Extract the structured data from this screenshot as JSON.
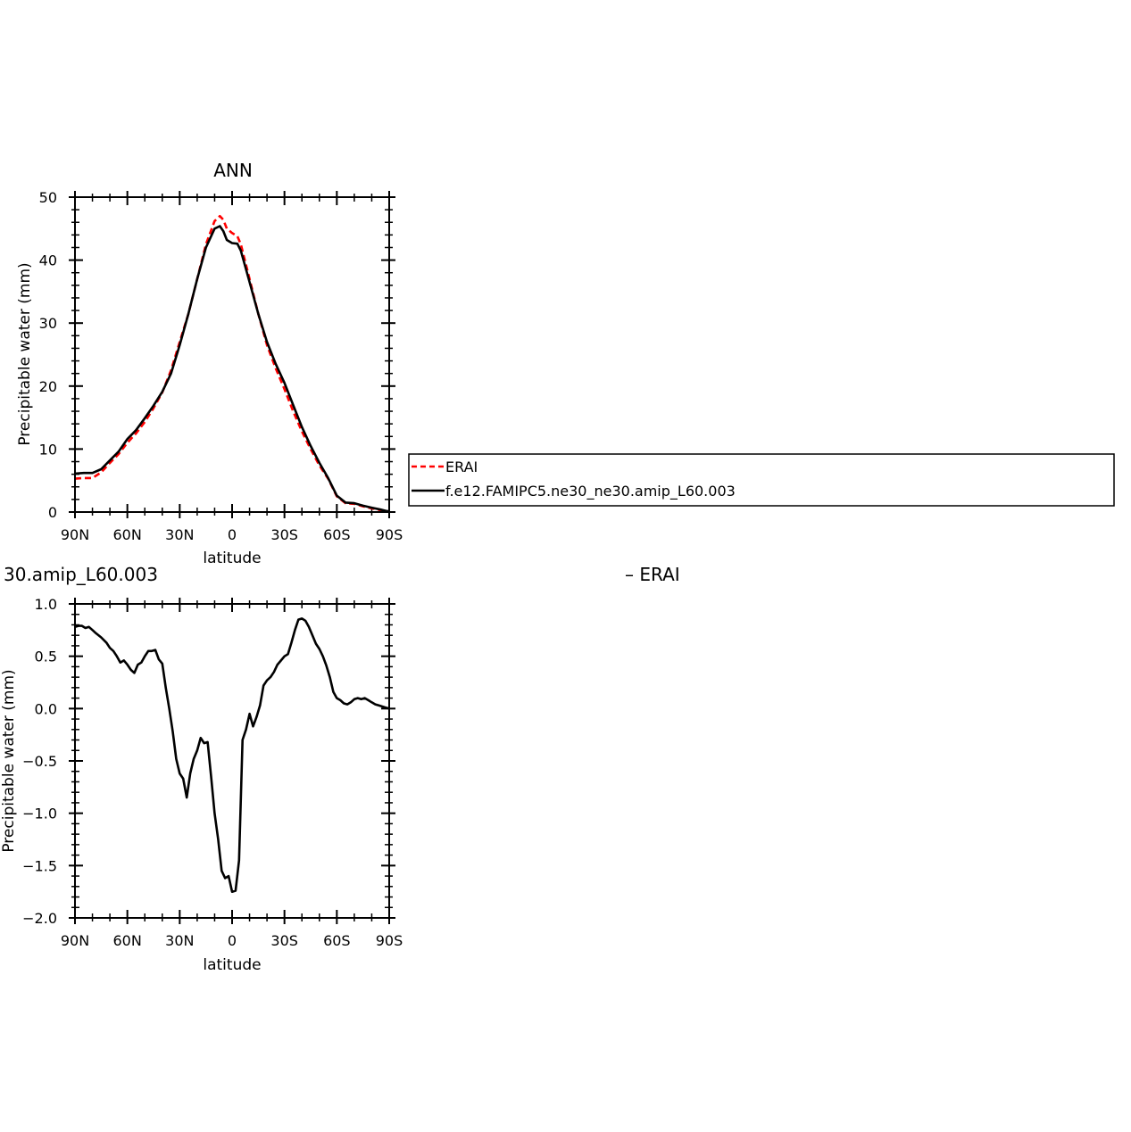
{
  "chart_data": [
    {
      "type": "line",
      "title": "ANN",
      "xlabel": "latitude",
      "ylabel": "Precipitable water (mm)",
      "ylim": [
        0,
        50
      ],
      "xlim": [
        90,
        -90
      ],
      "x_tick_labels": [
        "90N",
        "60N",
        "30N",
        "0",
        "30S",
        "60S",
        "90S"
      ],
      "y_tick_labels": [
        "0",
        "10",
        "20",
        "30",
        "40",
        "50"
      ],
      "grid": false,
      "legend": "right, boxed",
      "series": [
        {
          "name": "ERAI",
          "color": "#ff0000",
          "dash": "dashed",
          "x": [
            90,
            85,
            80,
            75,
            70,
            65,
            60,
            55,
            50,
            45,
            40,
            35,
            30,
            25,
            20,
            15,
            10,
            7,
            5,
            3,
            0,
            -3,
            -5,
            -10,
            -15,
            -20,
            -25,
            -30,
            -35,
            -40,
            -45,
            -50,
            -55,
            -60,
            -65,
            -70,
            -75,
            -80,
            -85,
            -88,
            -90
          ],
          "y": [
            5.3,
            5.4,
            5.4,
            6.3,
            7.8,
            9.2,
            11.0,
            12.5,
            14.3,
            16.5,
            19.0,
            22.5,
            27.0,
            31.5,
            37.0,
            42.5,
            46.2,
            47.0,
            46.4,
            45.0,
            44.3,
            43.8,
            42.5,
            37.0,
            31.5,
            26.5,
            22.8,
            19.5,
            16.0,
            12.8,
            10.0,
            7.4,
            5.3,
            2.5,
            1.4,
            1.3,
            0.9,
            0.6,
            0.3,
            0.1,
            0.1
          ]
        },
        {
          "name": "f.e12.FAMIPC5.ne30_ne30.amip_L60.003",
          "color": "#000000",
          "dash": "solid",
          "x": [
            90,
            85,
            80,
            75,
            70,
            65,
            60,
            55,
            50,
            45,
            40,
            35,
            30,
            25,
            20,
            15,
            10,
            7,
            5,
            3,
            0,
            -3,
            -5,
            -10,
            -15,
            -20,
            -25,
            -30,
            -35,
            -40,
            -45,
            -50,
            -55,
            -60,
            -65,
            -70,
            -75,
            -80,
            -85,
            -88,
            -90
          ],
          "y": [
            6.1,
            6.2,
            6.2,
            6.8,
            8.2,
            9.6,
            11.6,
            13.0,
            14.9,
            16.9,
            19.1,
            22.0,
            26.5,
            31.5,
            37.0,
            42.0,
            45.0,
            45.4,
            44.6,
            43.2,
            42.7,
            42.6,
            41.5,
            36.5,
            31.5,
            27.0,
            23.5,
            20.5,
            17.0,
            13.5,
            10.5,
            7.8,
            5.4,
            2.6,
            1.5,
            1.4,
            1.0,
            0.7,
            0.4,
            0.2,
            0.1
          ]
        }
      ]
    },
    {
      "type": "line",
      "title": "30.amip_L60.003",
      "title_right": "– ERAI",
      "xlabel": "latitude",
      "ylabel": "Precipitable water (mm)",
      "ylim": [
        -2.0,
        1.0
      ],
      "xlim": [
        90,
        -90
      ],
      "x_tick_labels": [
        "90N",
        "60N",
        "30N",
        "0",
        "30S",
        "60S",
        "90S"
      ],
      "y_tick_labels": [
        "1.0",
        "0.5",
        "0.0",
        "−0.5",
        "−1.0",
        "−1.5",
        "−2.0"
      ],
      "grid": false,
      "series": [
        {
          "color": "#000000",
          "dash": "solid",
          "x": [
            90,
            88,
            86,
            84,
            82,
            80,
            78,
            75,
            72,
            70,
            68,
            66,
            64,
            62,
            60,
            58,
            56,
            54,
            52,
            50,
            48,
            46,
            44,
            42,
            40,
            38,
            36,
            34,
            32,
            30,
            28,
            26,
            24,
            22,
            20,
            18,
            16,
            14,
            12,
            10,
            8,
            6,
            4,
            2,
            0,
            -2,
            -4,
            -6,
            -8,
            -10,
            -12,
            -14,
            -16,
            -18,
            -20,
            -22,
            -24,
            -26,
            -28,
            -30,
            -32,
            -34,
            -36,
            -38,
            -40,
            -42,
            -44,
            -46,
            -48,
            -50,
            -52,
            -54,
            -56,
            -58,
            -60,
            -62,
            -64,
            -66,
            -68,
            -70,
            -72,
            -74,
            -76,
            -78,
            -80,
            -82,
            -84,
            -86,
            -88,
            -90
          ],
          "y": [
            0.78,
            0.79,
            0.79,
            0.77,
            0.78,
            0.75,
            0.72,
            0.68,
            0.63,
            0.58,
            0.55,
            0.5,
            0.44,
            0.46,
            0.42,
            0.37,
            0.34,
            0.42,
            0.44,
            0.5,
            0.55,
            0.55,
            0.56,
            0.47,
            0.43,
            0.2,
            0.0,
            -0.22,
            -0.48,
            -0.62,
            -0.67,
            -0.85,
            -0.62,
            -0.48,
            -0.4,
            -0.28,
            -0.33,
            -0.32,
            -0.65,
            -1.0,
            -1.25,
            -1.55,
            -1.62,
            -1.6,
            -1.75,
            -1.74,
            -1.45,
            -0.3,
            -0.2,
            -0.05,
            -0.17,
            -0.08,
            0.03,
            0.22,
            0.27,
            0.3,
            0.35,
            0.42,
            0.46,
            0.5,
            0.52,
            0.63,
            0.75,
            0.85,
            0.86,
            0.84,
            0.78,
            0.7,
            0.62,
            0.57,
            0.5,
            0.41,
            0.3,
            0.16,
            0.1,
            0.08,
            0.05,
            0.04,
            0.06,
            0.09,
            0.1,
            0.09,
            0.1,
            0.08,
            0.06,
            0.04,
            0.03,
            0.02,
            0.01,
            0.0
          ]
        }
      ]
    }
  ]
}
